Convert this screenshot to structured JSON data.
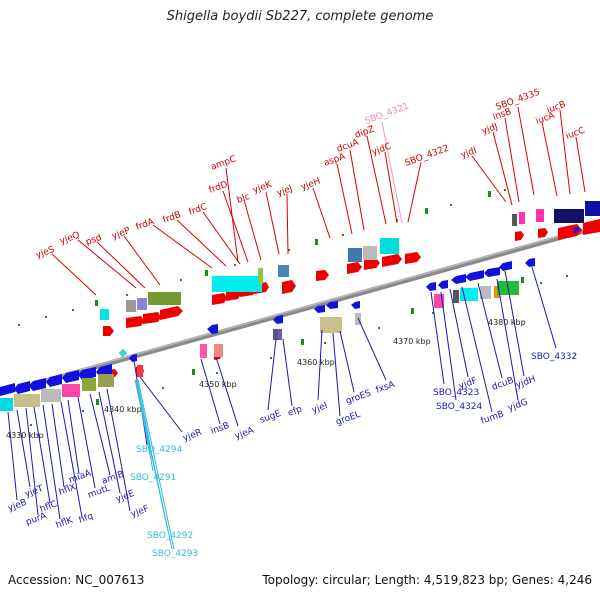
{
  "title": "Shigella boydii Sb227, complete genome",
  "footer": {
    "accession": "Accession: NC_007613",
    "summary": "Topology: circular; Length: 4,519,823 bp; Genes: 4,246"
  },
  "ticks": [
    "4330 kbp",
    "4340 kbp",
    "4350 kbp",
    "4360 kbp",
    "4370 kbp",
    "4380 kbp"
  ],
  "genes_top": [
    "yjeS",
    "yjeQ",
    "psd",
    "yjeP",
    "frdA",
    "frdB",
    "frdC",
    "frdD",
    "ampC",
    "blc",
    "yjeK",
    "yjeJ",
    "yjeH",
    "aspA",
    "dcuA",
    "dipZ",
    "yjdC",
    "SBO_4321",
    "SBO_4322",
    "yjdI",
    "yjdJ",
    "insB",
    "SBO_4335",
    "iucA",
    "iucB",
    "iucC"
  ],
  "genes_bottom": [
    "yjeB",
    "yjeT",
    "purA",
    "hflC",
    "hflK",
    "hflX",
    "hfq",
    "miaA",
    "mutL",
    "amiB",
    "yjeE",
    "yjeF",
    "SBO_4291",
    "SBO_4292",
    "SBO_4293",
    "SBO_4294",
    "yjeR",
    "insB",
    "yjeA",
    "sugE",
    "efp",
    "yjeI",
    "groEL",
    "groES",
    "fxsA",
    "SBO_4323",
    "SBO_4324",
    "yjdF",
    "fumB",
    "dcuB",
    "yjdG",
    "yjdH",
    "SBO_4332"
  ],
  "colors": {
    "forward_label": "#cc0000",
    "reverse_label": "#1a1aaa",
    "pseudo_label": "#33bbdd",
    "pink_label": "#ee88bb",
    "forward_gene": "#ee0000",
    "reverse_gene": "#1111dd",
    "backbone": "#8a8a8a",
    "tick_dot": "#228822"
  }
}
